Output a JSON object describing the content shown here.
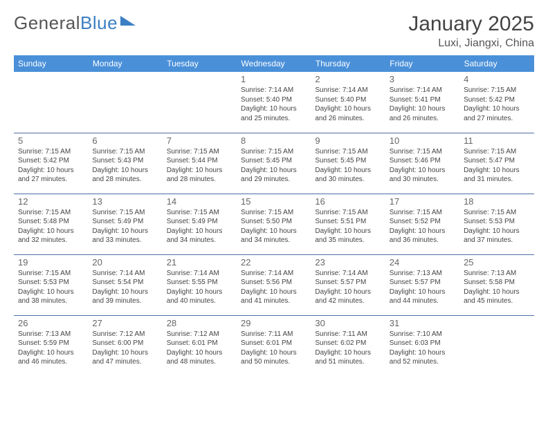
{
  "brand": {
    "part1": "General",
    "part2": "Blue"
  },
  "title": "January 2025",
  "location": "Luxi, Jiangxi, China",
  "header_color": "#4a90d9",
  "divider_color": "#4a6fa5",
  "text_color": "#444444",
  "daynum_color": "#666666",
  "font_size_header": 12,
  "font_size_daynum": 13,
  "font_size_info": 10,
  "days_of_week": [
    "Sunday",
    "Monday",
    "Tuesday",
    "Wednesday",
    "Thursday",
    "Friday",
    "Saturday"
  ],
  "cells": [
    [
      {
        "n": "",
        "sr": "",
        "ss": "",
        "dl": ""
      },
      {
        "n": "",
        "sr": "",
        "ss": "",
        "dl": ""
      },
      {
        "n": "",
        "sr": "",
        "ss": "",
        "dl": ""
      },
      {
        "n": "1",
        "sr": "Sunrise: 7:14 AM",
        "ss": "Sunset: 5:40 PM",
        "dl": "Daylight: 10 hours and 25 minutes."
      },
      {
        "n": "2",
        "sr": "Sunrise: 7:14 AM",
        "ss": "Sunset: 5:40 PM",
        "dl": "Daylight: 10 hours and 26 minutes."
      },
      {
        "n": "3",
        "sr": "Sunrise: 7:14 AM",
        "ss": "Sunset: 5:41 PM",
        "dl": "Daylight: 10 hours and 26 minutes."
      },
      {
        "n": "4",
        "sr": "Sunrise: 7:15 AM",
        "ss": "Sunset: 5:42 PM",
        "dl": "Daylight: 10 hours and 27 minutes."
      }
    ],
    [
      {
        "n": "5",
        "sr": "Sunrise: 7:15 AM",
        "ss": "Sunset: 5:42 PM",
        "dl": "Daylight: 10 hours and 27 minutes."
      },
      {
        "n": "6",
        "sr": "Sunrise: 7:15 AM",
        "ss": "Sunset: 5:43 PM",
        "dl": "Daylight: 10 hours and 28 minutes."
      },
      {
        "n": "7",
        "sr": "Sunrise: 7:15 AM",
        "ss": "Sunset: 5:44 PM",
        "dl": "Daylight: 10 hours and 28 minutes."
      },
      {
        "n": "8",
        "sr": "Sunrise: 7:15 AM",
        "ss": "Sunset: 5:45 PM",
        "dl": "Daylight: 10 hours and 29 minutes."
      },
      {
        "n": "9",
        "sr": "Sunrise: 7:15 AM",
        "ss": "Sunset: 5:45 PM",
        "dl": "Daylight: 10 hours and 30 minutes."
      },
      {
        "n": "10",
        "sr": "Sunrise: 7:15 AM",
        "ss": "Sunset: 5:46 PM",
        "dl": "Daylight: 10 hours and 30 minutes."
      },
      {
        "n": "11",
        "sr": "Sunrise: 7:15 AM",
        "ss": "Sunset: 5:47 PM",
        "dl": "Daylight: 10 hours and 31 minutes."
      }
    ],
    [
      {
        "n": "12",
        "sr": "Sunrise: 7:15 AM",
        "ss": "Sunset: 5:48 PM",
        "dl": "Daylight: 10 hours and 32 minutes."
      },
      {
        "n": "13",
        "sr": "Sunrise: 7:15 AM",
        "ss": "Sunset: 5:49 PM",
        "dl": "Daylight: 10 hours and 33 minutes."
      },
      {
        "n": "14",
        "sr": "Sunrise: 7:15 AM",
        "ss": "Sunset: 5:49 PM",
        "dl": "Daylight: 10 hours and 34 minutes."
      },
      {
        "n": "15",
        "sr": "Sunrise: 7:15 AM",
        "ss": "Sunset: 5:50 PM",
        "dl": "Daylight: 10 hours and 34 minutes."
      },
      {
        "n": "16",
        "sr": "Sunrise: 7:15 AM",
        "ss": "Sunset: 5:51 PM",
        "dl": "Daylight: 10 hours and 35 minutes."
      },
      {
        "n": "17",
        "sr": "Sunrise: 7:15 AM",
        "ss": "Sunset: 5:52 PM",
        "dl": "Daylight: 10 hours and 36 minutes."
      },
      {
        "n": "18",
        "sr": "Sunrise: 7:15 AM",
        "ss": "Sunset: 5:53 PM",
        "dl": "Daylight: 10 hours and 37 minutes."
      }
    ],
    [
      {
        "n": "19",
        "sr": "Sunrise: 7:15 AM",
        "ss": "Sunset: 5:53 PM",
        "dl": "Daylight: 10 hours and 38 minutes."
      },
      {
        "n": "20",
        "sr": "Sunrise: 7:14 AM",
        "ss": "Sunset: 5:54 PM",
        "dl": "Daylight: 10 hours and 39 minutes."
      },
      {
        "n": "21",
        "sr": "Sunrise: 7:14 AM",
        "ss": "Sunset: 5:55 PM",
        "dl": "Daylight: 10 hours and 40 minutes."
      },
      {
        "n": "22",
        "sr": "Sunrise: 7:14 AM",
        "ss": "Sunset: 5:56 PM",
        "dl": "Daylight: 10 hours and 41 minutes."
      },
      {
        "n": "23",
        "sr": "Sunrise: 7:14 AM",
        "ss": "Sunset: 5:57 PM",
        "dl": "Daylight: 10 hours and 42 minutes."
      },
      {
        "n": "24",
        "sr": "Sunrise: 7:13 AM",
        "ss": "Sunset: 5:57 PM",
        "dl": "Daylight: 10 hours and 44 minutes."
      },
      {
        "n": "25",
        "sr": "Sunrise: 7:13 AM",
        "ss": "Sunset: 5:58 PM",
        "dl": "Daylight: 10 hours and 45 minutes."
      }
    ],
    [
      {
        "n": "26",
        "sr": "Sunrise: 7:13 AM",
        "ss": "Sunset: 5:59 PM",
        "dl": "Daylight: 10 hours and 46 minutes."
      },
      {
        "n": "27",
        "sr": "Sunrise: 7:12 AM",
        "ss": "Sunset: 6:00 PM",
        "dl": "Daylight: 10 hours and 47 minutes."
      },
      {
        "n": "28",
        "sr": "Sunrise: 7:12 AM",
        "ss": "Sunset: 6:01 PM",
        "dl": "Daylight: 10 hours and 48 minutes."
      },
      {
        "n": "29",
        "sr": "Sunrise: 7:11 AM",
        "ss": "Sunset: 6:01 PM",
        "dl": "Daylight: 10 hours and 50 minutes."
      },
      {
        "n": "30",
        "sr": "Sunrise: 7:11 AM",
        "ss": "Sunset: 6:02 PM",
        "dl": "Daylight: 10 hours and 51 minutes."
      },
      {
        "n": "31",
        "sr": "Sunrise: 7:10 AM",
        "ss": "Sunset: 6:03 PM",
        "dl": "Daylight: 10 hours and 52 minutes."
      },
      {
        "n": "",
        "sr": "",
        "ss": "",
        "dl": ""
      }
    ]
  ]
}
